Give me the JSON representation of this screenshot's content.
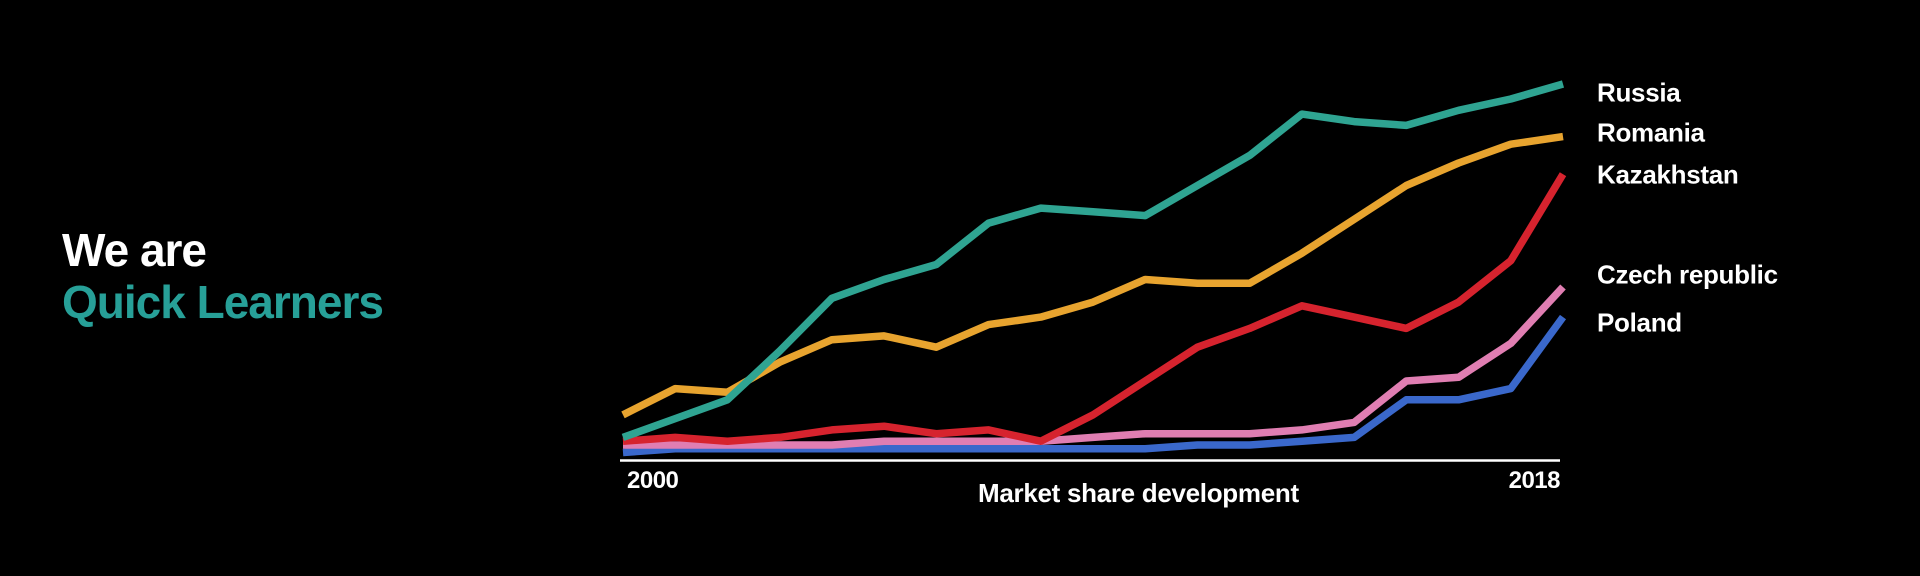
{
  "background_color": "#000000",
  "hero": {
    "line1": "We are",
    "line2": "Quick Learners",
    "accent_color": "#27A098",
    "text_color": "#FFFFFF"
  },
  "chart_data": {
    "type": "line",
    "title": "Market share development",
    "x_axis": {
      "start_label": "2000",
      "end_label": "2018"
    },
    "x": [
      2000,
      2001,
      2002,
      2003,
      2004,
      2005,
      2006,
      2007,
      2008,
      2009,
      2010,
      2011,
      2012,
      2013,
      2014,
      2015,
      2016,
      2017,
      2018
    ],
    "ylabel": "",
    "y_note": "no y-axis shown; values are relative estimates on a 0-100 scale",
    "ylim": [
      0,
      100
    ],
    "grid": false,
    "axis_color": "#FFFFFF",
    "label_color": "#FFFFFF",
    "legend_position": "right of line ends",
    "series": [
      {
        "name": "Russia",
        "color": "#2FA492",
        "values": [
          6,
          11,
          16,
          29,
          43,
          48,
          52,
          63,
          67,
          66,
          65,
          73,
          81,
          92,
          90,
          89,
          93,
          96,
          100
        ]
      },
      {
        "name": "Romania",
        "color": "#E8A42F",
        "values": [
          12,
          19,
          18,
          26,
          32,
          33,
          30,
          36,
          38,
          42,
          48,
          47,
          47,
          55,
          64,
          73,
          79,
          84,
          86
        ]
      },
      {
        "name": "Kazakhstan",
        "color": "#D6232E",
        "values": [
          5,
          6,
          5,
          6,
          8,
          9,
          7,
          8,
          5,
          12,
          21,
          30,
          35,
          41,
          38,
          35,
          42,
          53,
          76
        ]
      },
      {
        "name": "Czech republic",
        "color": "#E07EB2",
        "values": [
          4,
          4,
          4,
          4,
          4,
          5,
          5,
          5,
          5,
          6,
          7,
          7,
          7,
          8,
          10,
          21,
          22,
          31,
          46
        ]
      },
      {
        "name": "Poland",
        "color": "#3A68CB",
        "values": [
          2,
          3,
          3,
          3,
          3,
          3,
          3,
          3,
          3,
          3,
          3,
          4,
          4,
          5,
          6,
          16,
          16,
          19,
          38
        ]
      }
    ]
  }
}
